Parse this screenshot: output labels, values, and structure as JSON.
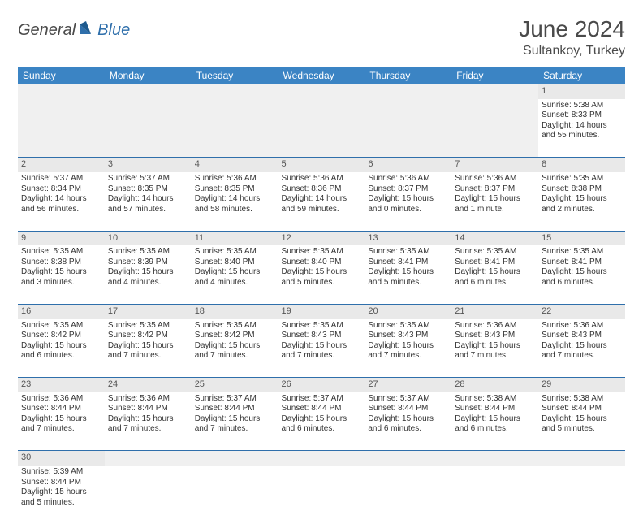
{
  "brand": {
    "part1": "General",
    "part2": "Blue"
  },
  "title": "June 2024",
  "location": "Sultankoy, Turkey",
  "colors": {
    "header_bg": "#3b84c4",
    "header_text": "#ffffff",
    "daynum_bg": "#e9e9e9",
    "empty_bg": "#f0f0f0",
    "row_divider": "#2f6fab",
    "body_text": "#333333",
    "title_text": "#4a4a4a"
  },
  "day_headers": [
    "Sunday",
    "Monday",
    "Tuesday",
    "Wednesday",
    "Thursday",
    "Friday",
    "Saturday"
  ],
  "weeks": [
    {
      "nums": [
        "",
        "",
        "",
        "",
        "",
        "",
        "1"
      ],
      "cells": [
        null,
        null,
        null,
        null,
        null,
        null,
        {
          "sunrise": "Sunrise: 5:38 AM",
          "sunset": "Sunset: 8:33 PM",
          "day1": "Daylight: 14 hours",
          "day2": "and 55 minutes."
        }
      ]
    },
    {
      "nums": [
        "2",
        "3",
        "4",
        "5",
        "6",
        "7",
        "8"
      ],
      "cells": [
        {
          "sunrise": "Sunrise: 5:37 AM",
          "sunset": "Sunset: 8:34 PM",
          "day1": "Daylight: 14 hours",
          "day2": "and 56 minutes."
        },
        {
          "sunrise": "Sunrise: 5:37 AM",
          "sunset": "Sunset: 8:35 PM",
          "day1": "Daylight: 14 hours",
          "day2": "and 57 minutes."
        },
        {
          "sunrise": "Sunrise: 5:36 AM",
          "sunset": "Sunset: 8:35 PM",
          "day1": "Daylight: 14 hours",
          "day2": "and 58 minutes."
        },
        {
          "sunrise": "Sunrise: 5:36 AM",
          "sunset": "Sunset: 8:36 PM",
          "day1": "Daylight: 14 hours",
          "day2": "and 59 minutes."
        },
        {
          "sunrise": "Sunrise: 5:36 AM",
          "sunset": "Sunset: 8:37 PM",
          "day1": "Daylight: 15 hours",
          "day2": "and 0 minutes."
        },
        {
          "sunrise": "Sunrise: 5:36 AM",
          "sunset": "Sunset: 8:37 PM",
          "day1": "Daylight: 15 hours",
          "day2": "and 1 minute."
        },
        {
          "sunrise": "Sunrise: 5:35 AM",
          "sunset": "Sunset: 8:38 PM",
          "day1": "Daylight: 15 hours",
          "day2": "and 2 minutes."
        }
      ]
    },
    {
      "nums": [
        "9",
        "10",
        "11",
        "12",
        "13",
        "14",
        "15"
      ],
      "cells": [
        {
          "sunrise": "Sunrise: 5:35 AM",
          "sunset": "Sunset: 8:38 PM",
          "day1": "Daylight: 15 hours",
          "day2": "and 3 minutes."
        },
        {
          "sunrise": "Sunrise: 5:35 AM",
          "sunset": "Sunset: 8:39 PM",
          "day1": "Daylight: 15 hours",
          "day2": "and 4 minutes."
        },
        {
          "sunrise": "Sunrise: 5:35 AM",
          "sunset": "Sunset: 8:40 PM",
          "day1": "Daylight: 15 hours",
          "day2": "and 4 minutes."
        },
        {
          "sunrise": "Sunrise: 5:35 AM",
          "sunset": "Sunset: 8:40 PM",
          "day1": "Daylight: 15 hours",
          "day2": "and 5 minutes."
        },
        {
          "sunrise": "Sunrise: 5:35 AM",
          "sunset": "Sunset: 8:41 PM",
          "day1": "Daylight: 15 hours",
          "day2": "and 5 minutes."
        },
        {
          "sunrise": "Sunrise: 5:35 AM",
          "sunset": "Sunset: 8:41 PM",
          "day1": "Daylight: 15 hours",
          "day2": "and 6 minutes."
        },
        {
          "sunrise": "Sunrise: 5:35 AM",
          "sunset": "Sunset: 8:41 PM",
          "day1": "Daylight: 15 hours",
          "day2": "and 6 minutes."
        }
      ]
    },
    {
      "nums": [
        "16",
        "17",
        "18",
        "19",
        "20",
        "21",
        "22"
      ],
      "cells": [
        {
          "sunrise": "Sunrise: 5:35 AM",
          "sunset": "Sunset: 8:42 PM",
          "day1": "Daylight: 15 hours",
          "day2": "and 6 minutes."
        },
        {
          "sunrise": "Sunrise: 5:35 AM",
          "sunset": "Sunset: 8:42 PM",
          "day1": "Daylight: 15 hours",
          "day2": "and 7 minutes."
        },
        {
          "sunrise": "Sunrise: 5:35 AM",
          "sunset": "Sunset: 8:42 PM",
          "day1": "Daylight: 15 hours",
          "day2": "and 7 minutes."
        },
        {
          "sunrise": "Sunrise: 5:35 AM",
          "sunset": "Sunset: 8:43 PM",
          "day1": "Daylight: 15 hours",
          "day2": "and 7 minutes."
        },
        {
          "sunrise": "Sunrise: 5:35 AM",
          "sunset": "Sunset: 8:43 PM",
          "day1": "Daylight: 15 hours",
          "day2": "and 7 minutes."
        },
        {
          "sunrise": "Sunrise: 5:36 AM",
          "sunset": "Sunset: 8:43 PM",
          "day1": "Daylight: 15 hours",
          "day2": "and 7 minutes."
        },
        {
          "sunrise": "Sunrise: 5:36 AM",
          "sunset": "Sunset: 8:43 PM",
          "day1": "Daylight: 15 hours",
          "day2": "and 7 minutes."
        }
      ]
    },
    {
      "nums": [
        "23",
        "24",
        "25",
        "26",
        "27",
        "28",
        "29"
      ],
      "cells": [
        {
          "sunrise": "Sunrise: 5:36 AM",
          "sunset": "Sunset: 8:44 PM",
          "day1": "Daylight: 15 hours",
          "day2": "and 7 minutes."
        },
        {
          "sunrise": "Sunrise: 5:36 AM",
          "sunset": "Sunset: 8:44 PM",
          "day1": "Daylight: 15 hours",
          "day2": "and 7 minutes."
        },
        {
          "sunrise": "Sunrise: 5:37 AM",
          "sunset": "Sunset: 8:44 PM",
          "day1": "Daylight: 15 hours",
          "day2": "and 7 minutes."
        },
        {
          "sunrise": "Sunrise: 5:37 AM",
          "sunset": "Sunset: 8:44 PM",
          "day1": "Daylight: 15 hours",
          "day2": "and 6 minutes."
        },
        {
          "sunrise": "Sunrise: 5:37 AM",
          "sunset": "Sunset: 8:44 PM",
          "day1": "Daylight: 15 hours",
          "day2": "and 6 minutes."
        },
        {
          "sunrise": "Sunrise: 5:38 AM",
          "sunset": "Sunset: 8:44 PM",
          "day1": "Daylight: 15 hours",
          "day2": "and 6 minutes."
        },
        {
          "sunrise": "Sunrise: 5:38 AM",
          "sunset": "Sunset: 8:44 PM",
          "day1": "Daylight: 15 hours",
          "day2": "and 5 minutes."
        }
      ]
    },
    {
      "nums": [
        "30",
        "",
        "",
        "",
        "",
        "",
        ""
      ],
      "cells": [
        {
          "sunrise": "Sunrise: 5:39 AM",
          "sunset": "Sunset: 8:44 PM",
          "day1": "Daylight: 15 hours",
          "day2": "and 5 minutes."
        },
        null,
        null,
        null,
        null,
        null,
        null
      ]
    }
  ]
}
